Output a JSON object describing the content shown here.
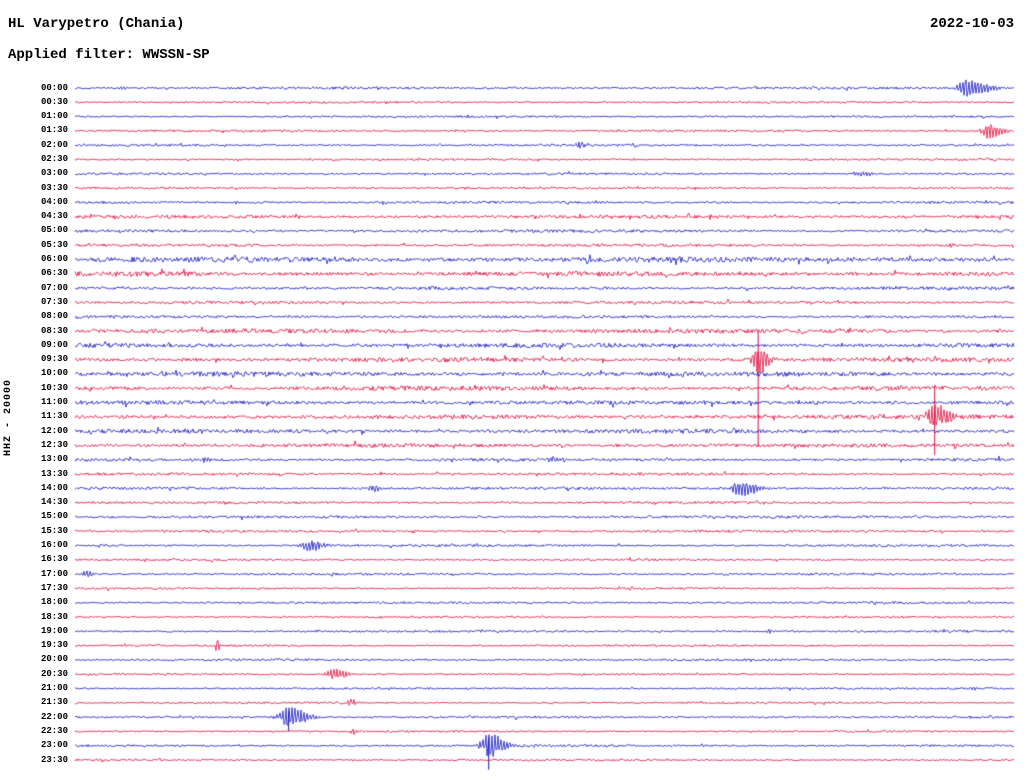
{
  "header": {
    "station": "HL Varypetro (Chania)",
    "date": "2022-10-03",
    "filter_line": "Applied filter: WWSSN-SP"
  },
  "axis": {
    "left_label": "HHZ - 20000"
  },
  "chart_data": {
    "type": "line",
    "subtype": "helicorder-seismogram",
    "station": "HL Varypetro (Chania)",
    "channel": "HHZ",
    "scale": 20000,
    "date": "2022-10-03",
    "filter": "WWSSN-SP",
    "minutes_per_row": 30,
    "row_start": "00:00",
    "row_end": "23:30",
    "colors": {
      "blue": "#1717c3",
      "red": "#e00c3c"
    },
    "rows": [
      {
        "label": "00:00",
        "color": "blue",
        "noise": 1.0,
        "events": [
          {
            "x": 0.048,
            "amp": 1.6,
            "width": 4
          },
          {
            "x": 0.951,
            "amp": 8,
            "width": 16
          }
        ]
      },
      {
        "label": "00:30",
        "color": "red",
        "noise": 0.8,
        "events": []
      },
      {
        "label": "01:00",
        "color": "blue",
        "noise": 0.8,
        "events": []
      },
      {
        "label": "01:30",
        "color": "red",
        "noise": 0.9,
        "events": [
          {
            "x": 0.972,
            "amp": 7,
            "width": 11
          }
        ]
      },
      {
        "label": "02:00",
        "color": "blue",
        "noise": 0.9,
        "events": [
          {
            "x": 0.536,
            "amp": 2.4,
            "width": 7
          }
        ]
      },
      {
        "label": "02:30",
        "color": "red",
        "noise": 0.8,
        "events": [
          {
            "x": 0.594,
            "amp": 1.5,
            "width": 3
          }
        ]
      },
      {
        "label": "03:00",
        "color": "blue",
        "noise": 0.9,
        "events": [
          {
            "x": 0.838,
            "amp": 2.2,
            "width": 10
          }
        ]
      },
      {
        "label": "03:30",
        "color": "red",
        "noise": 0.9,
        "events": []
      },
      {
        "label": "04:00",
        "color": "blue",
        "noise": 1.0,
        "events": [
          {
            "x": 0.172,
            "amp": 1.3,
            "width": 3
          }
        ]
      },
      {
        "label": "04:30",
        "color": "red",
        "noise": 1.4,
        "events": [
          {
            "x": 0.013,
            "amp": 2.6,
            "width": 5
          }
        ]
      },
      {
        "label": "05:00",
        "color": "blue",
        "noise": 1.2,
        "events": []
      },
      {
        "label": "05:30",
        "color": "red",
        "noise": 1.1,
        "events": [
          {
            "x": 0.931,
            "amp": 2.2,
            "width": 5
          }
        ]
      },
      {
        "label": "06:00",
        "color": "blue",
        "noise": 2.2,
        "events": []
      },
      {
        "label": "06:30",
        "color": "red",
        "noise": 1.9,
        "events": [
          {
            "x": 0.293,
            "amp": 2.2,
            "width": 5
          }
        ]
      },
      {
        "label": "07:00",
        "color": "blue",
        "noise": 1.3,
        "events": []
      },
      {
        "label": "07:30",
        "color": "red",
        "noise": 1.2,
        "events": []
      },
      {
        "label": "08:00",
        "color": "blue",
        "noise": 1.2,
        "events": []
      },
      {
        "label": "08:30",
        "color": "red",
        "noise": 1.8,
        "events": []
      },
      {
        "label": "09:00",
        "color": "blue",
        "noise": 1.7,
        "events": []
      },
      {
        "label": "09:30",
        "color": "red",
        "noise": 1.8,
        "events": [
          {
            "x": 0.727,
            "amp": 13,
            "width": 9,
            "tailUp": 28,
            "tailDown": 87
          }
        ]
      },
      {
        "label": "10:00",
        "color": "blue",
        "noise": 1.9,
        "events": []
      },
      {
        "label": "10:30",
        "color": "red",
        "noise": 1.8,
        "events": []
      },
      {
        "label": "11:00",
        "color": "blue",
        "noise": 1.7,
        "events": []
      },
      {
        "label": "11:30",
        "color": "red",
        "noise": 1.8,
        "events": [
          {
            "x": 0.915,
            "amp": 12,
            "width": 11,
            "tailUp": 32,
            "tailDown": 38
          }
        ]
      },
      {
        "label": "12:00",
        "color": "blue",
        "noise": 1.7,
        "events": []
      },
      {
        "label": "12:30",
        "color": "red",
        "noise": 1.5,
        "events": []
      },
      {
        "label": "13:00",
        "color": "blue",
        "noise": 1.2,
        "events": [
          {
            "x": 0.138,
            "amp": 2.4,
            "width": 5
          },
          {
            "x": 0.509,
            "amp": 3,
            "width": 8
          }
        ]
      },
      {
        "label": "13:30",
        "color": "red",
        "noise": 1.1,
        "events": []
      },
      {
        "label": "14:00",
        "color": "blue",
        "noise": 1.1,
        "events": [
          {
            "x": 0.317,
            "amp": 3,
            "width": 7
          },
          {
            "x": 0.708,
            "amp": 8,
            "width": 13
          }
        ]
      },
      {
        "label": "14:30",
        "color": "red",
        "noise": 1.0,
        "events": [
          {
            "x": 0.612,
            "amp": 1.5,
            "width": 4
          }
        ]
      },
      {
        "label": "15:00",
        "color": "blue",
        "noise": 1.1,
        "events": [
          {
            "x": 0.7,
            "amp": 1.3,
            "width": 4
          }
        ]
      },
      {
        "label": "15:30",
        "color": "red",
        "noise": 1.0,
        "events": []
      },
      {
        "label": "16:00",
        "color": "blue",
        "noise": 1.0,
        "events": [
          {
            "x": 0.248,
            "amp": 6,
            "width": 11
          }
        ]
      },
      {
        "label": "16:30",
        "color": "red",
        "noise": 0.9,
        "events": []
      },
      {
        "label": "17:00",
        "color": "blue",
        "noise": 0.9,
        "events": [
          {
            "x": 0.012,
            "amp": 3.4,
            "width": 6
          }
        ]
      },
      {
        "label": "17:30",
        "color": "red",
        "noise": 0.8,
        "events": []
      },
      {
        "label": "18:00",
        "color": "blue",
        "noise": 0.9,
        "events": []
      },
      {
        "label": "18:30",
        "color": "red",
        "noise": 0.8,
        "events": []
      },
      {
        "label": "19:00",
        "color": "blue",
        "noise": 0.9,
        "events": [
          {
            "x": 0.738,
            "amp": 1.6,
            "width": 4
          }
        ]
      },
      {
        "label": "19:30",
        "color": "red",
        "noise": 0.8,
        "events": [
          {
            "x": 0.151,
            "amp": 6.5,
            "width": 2
          }
        ]
      },
      {
        "label": "20:00",
        "color": "blue",
        "noise": 0.9,
        "events": []
      },
      {
        "label": "20:30",
        "color": "red",
        "noise": 0.8,
        "events": [
          {
            "x": 0.275,
            "amp": 5,
            "width": 11
          }
        ]
      },
      {
        "label": "21:00",
        "color": "blue",
        "noise": 0.8,
        "events": [
          {
            "x": 0.956,
            "amp": 1.6,
            "width": 4
          }
        ]
      },
      {
        "label": "21:30",
        "color": "red",
        "noise": 0.8,
        "events": [
          {
            "x": 0.293,
            "amp": 3,
            "width": 6
          }
        ]
      },
      {
        "label": "22:00",
        "color": "blue",
        "noise": 0.9,
        "events": [
          {
            "x": 0.227,
            "amp": 10,
            "width": 15,
            "tailUp": 6,
            "tailDown": 14
          }
        ]
      },
      {
        "label": "22:30",
        "color": "red",
        "noise": 0.8,
        "events": [
          {
            "x": 0.295,
            "amp": 2.4,
            "width": 5
          }
        ]
      },
      {
        "label": "23:00",
        "color": "blue",
        "noise": 0.9,
        "events": [
          {
            "x": 0.44,
            "amp": 12,
            "width": 13,
            "tailUp": 8,
            "tailDown": 24
          }
        ]
      },
      {
        "label": "23:30",
        "color": "red",
        "noise": 0.8,
        "events": []
      }
    ]
  }
}
